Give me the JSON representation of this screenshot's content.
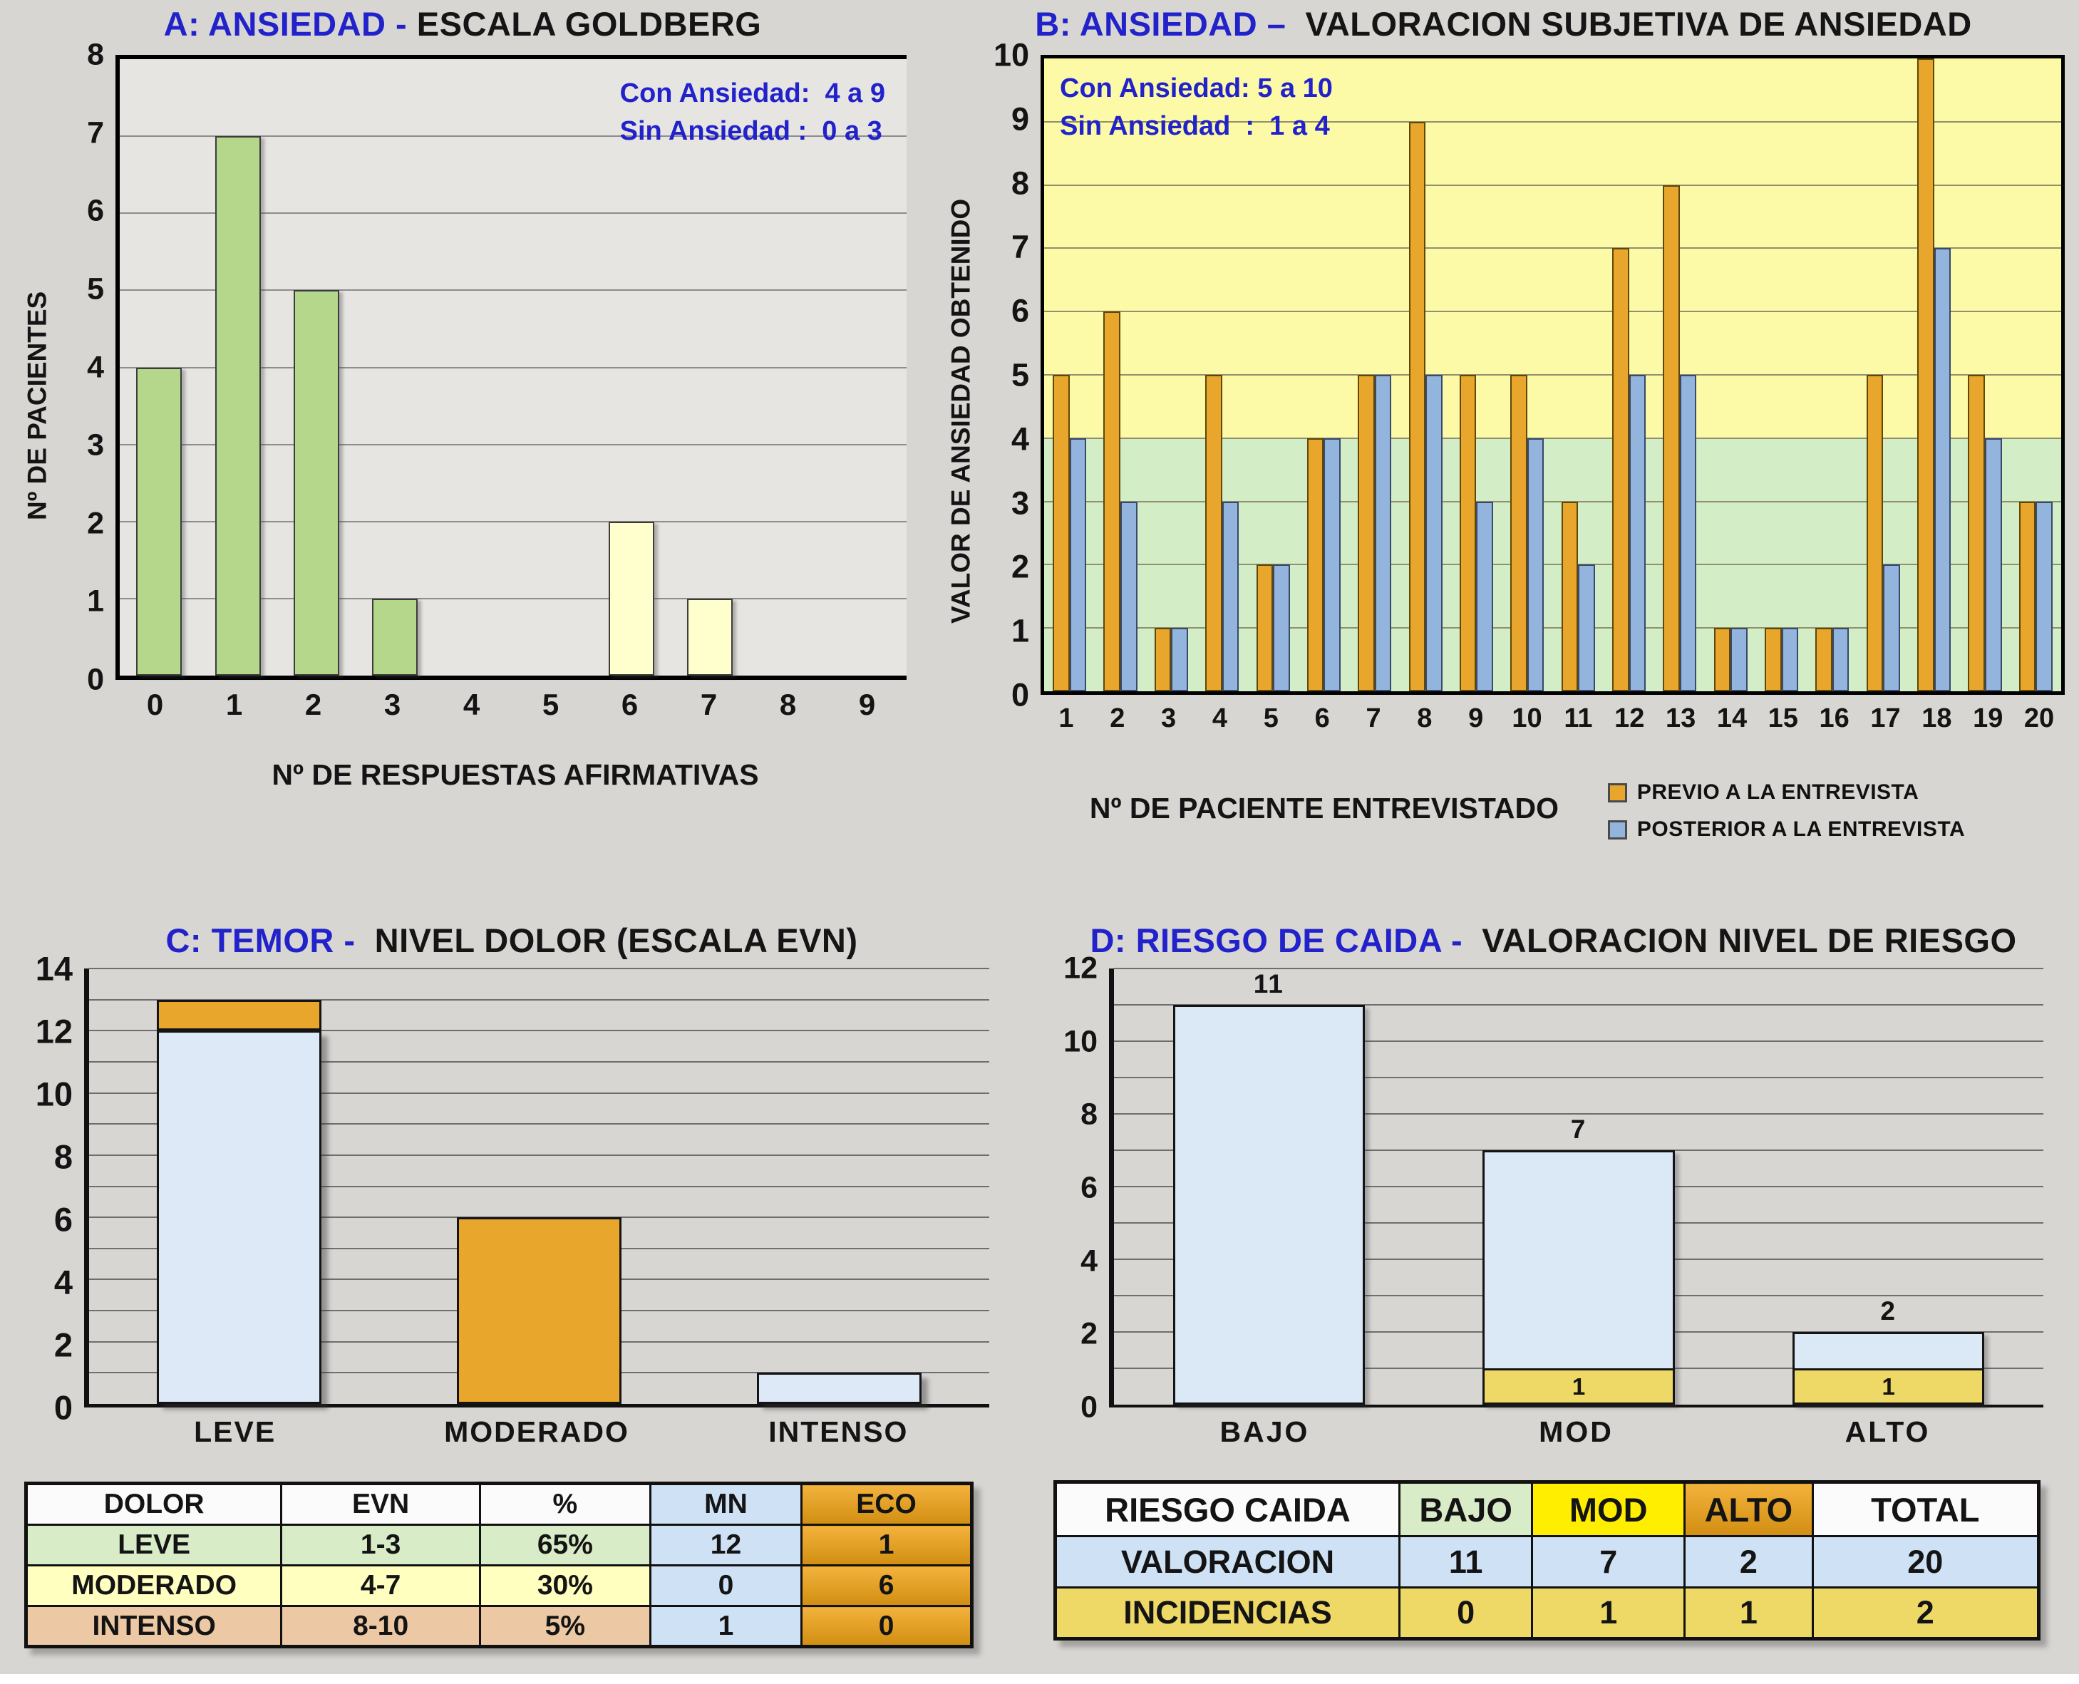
{
  "page": {
    "background": "#d8d6d3"
  },
  "chart_data": [
    {
      "id": "A",
      "type": "bar",
      "title_blue": "A: ANSIEDAD - ",
      "title_black": "ESCALA GOLDBERG",
      "ylabel": "Nº DE PACIENTES",
      "xlabel": "Nº DE RESPUESTAS AFIRMATIVAS",
      "ylim": [
        0,
        8
      ],
      "ytick_step": 1,
      "categories": [
        "0",
        "1",
        "2",
        "3",
        "4",
        "5",
        "6",
        "7",
        "8",
        "9"
      ],
      "values": [
        4,
        7,
        5,
        1,
        0,
        0,
        2,
        1,
        0,
        0
      ],
      "bar_colors": [
        "#b5d78c",
        "#b5d78c",
        "#b5d78c",
        "#b5d78c",
        "#b5d78c",
        "#b5d78c",
        "#ffffcd",
        "#ffffcd",
        "#ffffcd",
        "#ffffcd"
      ],
      "annotations": [
        "Con Ansiedad:  4 a 9",
        "Sin Ansiedad :  0 a 3"
      ],
      "grid": "horizontal"
    },
    {
      "id": "B",
      "type": "grouped-bar",
      "title_blue": "B: ANSIEDAD – ",
      "title_black": " VALORACION SUBJETIVA DE ANSIEDAD",
      "ylabel": "VALOR DE ANSIEDAD OBTENIDO",
      "xlabel": "Nº DE PACIENTE ENTREVISTADO",
      "ylim": [
        0,
        10
      ],
      "ytick_step": 1,
      "categories": [
        "1",
        "2",
        "3",
        "4",
        "5",
        "6",
        "7",
        "8",
        "9",
        "10",
        "11",
        "12",
        "13",
        "14",
        "15",
        "16",
        "17",
        "18",
        "19",
        "20"
      ],
      "series": [
        {
          "name": "PREVIO A LA ENTREVISTA",
          "color": "#e8a62c",
          "values": [
            5,
            6,
            1,
            5,
            2,
            4,
            5,
            9,
            5,
            5,
            3,
            7,
            8,
            1,
            1,
            1,
            5,
            10,
            5,
            3
          ]
        },
        {
          "name": "POSTERIOR A LA ENTREVISTA",
          "color": "#92b4dd",
          "values": [
            4,
            3,
            1,
            3,
            2,
            4,
            5,
            5,
            3,
            4,
            2,
            5,
            5,
            1,
            1,
            1,
            2,
            7,
            4,
            3
          ]
        }
      ],
      "zones": [
        {
          "label": "sin-ansiedad",
          "from": 0,
          "to": 4,
          "color": "#d3edc6"
        },
        {
          "label": "con-ansiedad",
          "from": 4,
          "to": 10,
          "color": "#fcfaa6"
        }
      ],
      "annotations": [
        "Con Ansiedad: 5 a 10",
        "Sin Ansiedad  :  1 a 4"
      ],
      "grid": "horizontal",
      "legend_position": "bottom-right"
    },
    {
      "id": "C",
      "type": "stacked-bar",
      "mode": "stack",
      "title_blue": "C: TEMOR - ",
      "title_black": " NIVEL DOLOR (ESCALA EVN)",
      "ylim": [
        0,
        14
      ],
      "ytick_step": 2,
      "categories": [
        "LEVE",
        "MODERADO",
        "INTENSO"
      ],
      "series": [
        {
          "name": "MN",
          "color": "#dde9f6",
          "values": [
            12,
            0,
            1
          ]
        },
        {
          "name": "ECO",
          "color": "#e8a62c",
          "values": [
            1,
            6,
            0
          ]
        }
      ],
      "grid": "horizontal"
    },
    {
      "id": "D",
      "type": "stacked-bar",
      "mode": "overlay",
      "title_blue": "D: RIESGO DE CAIDA - ",
      "title_black": " VALORACION NIVEL DE RIESGO",
      "ylim": [
        0,
        12
      ],
      "ytick_step": 2,
      "categories": [
        "BAJO",
        "MOD",
        "ALTO"
      ],
      "series": [
        {
          "name": "VALORACION",
          "color": "#dbe8f6",
          "values": [
            11,
            7,
            2
          ]
        },
        {
          "name": "INCIDENCIAS",
          "color": "#eed866",
          "values": [
            0,
            1,
            1
          ]
        }
      ],
      "total_labels": [
        "11",
        "7",
        "2"
      ],
      "segment_labels": [
        "",
        "1",
        "1"
      ],
      "grid": "horizontal"
    }
  ],
  "tables": {
    "c": {
      "headers": [
        "DOLOR",
        "EVN",
        "%",
        "MN",
        "ECO"
      ],
      "header_colors": [
        "#fbfbfb",
        "#fbfbfb",
        "#fbfbfb",
        "#cfe1f4",
        "linear-gradient(180deg,#f3b23c,#d18e12)"
      ],
      "rows": [
        {
          "cells": [
            "LEVE",
            "1-3",
            "65%",
            "12",
            "1"
          ],
          "colors": [
            "#d9ecc8",
            "#d9ecc8",
            "#d9ecc8",
            "#cfe1f4",
            "linear-gradient(180deg,#f3b23c,#d18e12)"
          ]
        },
        {
          "cells": [
            "MODERADO",
            "4-7",
            "30%",
            "0",
            "6"
          ],
          "colors": [
            "#ffffc0",
            "#ffffc0",
            "#ffffc0",
            "#cfe1f4",
            "linear-gradient(180deg,#f3b23c,#d18e12)"
          ]
        },
        {
          "cells": [
            "INTENSO",
            "8-10",
            "5%",
            "1",
            "0"
          ],
          "colors": [
            "#ecc9a4",
            "#ecc9a4",
            "#ecc9a4",
            "#cfe1f4",
            "linear-gradient(180deg,#f3b23c,#d18e12)"
          ]
        }
      ]
    },
    "d": {
      "headers": [
        "RIESGO CAIDA",
        "BAJO",
        "MOD",
        "ALTO",
        "TOTAL"
      ],
      "header_colors": [
        "#fbfbfb",
        "#d9ecc8",
        "#ffee00",
        "linear-gradient(180deg,#f3b23c,#d18e12)",
        "#fbfbfb"
      ],
      "rows": [
        {
          "cells": [
            "VALORACION",
            "11",
            "7",
            "2",
            "20"
          ],
          "colors": [
            "#cfe1f4",
            "#cfe1f4",
            "#cfe1f4",
            "#cfe1f4",
            "#cfe1f4"
          ]
        },
        {
          "cells": [
            "INCIDENCIAS",
            "0",
            "1",
            "1",
            "2"
          ],
          "colors": [
            "#eed866",
            "#eed866",
            "#eed866",
            "#eed866",
            "#eed866"
          ]
        }
      ]
    }
  }
}
